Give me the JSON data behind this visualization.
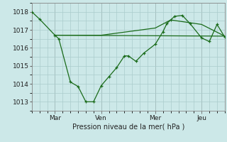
{
  "xlabel": "Pression niveau de la mer( hPa )",
  "bg_color": "#cce8e8",
  "grid_color": "#aacccc",
  "line_color": "#1a6b1a",
  "ylim": [
    1012.5,
    1018.5
  ],
  "yticks": [
    1013,
    1014,
    1015,
    1016,
    1017,
    1018
  ],
  "xtick_labels": [
    "Mar",
    "Ven",
    "Mer",
    "Jeu"
  ],
  "xtick_positions": [
    12,
    36,
    64,
    88
  ],
  "xlim": [
    0,
    100
  ],
  "series1_x": [
    0,
    4,
    12,
    14,
    20,
    24,
    28,
    32,
    36,
    40,
    44,
    48,
    50,
    54,
    58,
    64,
    68,
    70,
    72,
    74,
    78,
    82,
    88,
    92,
    96,
    100
  ],
  "series1_y": [
    1018.0,
    1017.6,
    1016.7,
    1016.5,
    1014.1,
    1013.85,
    1013.0,
    1013.0,
    1013.9,
    1014.4,
    1014.9,
    1015.55,
    1015.55,
    1015.25,
    1015.7,
    1016.2,
    1016.9,
    1017.35,
    1017.55,
    1017.75,
    1017.8,
    1017.35,
    1016.55,
    1016.35,
    1017.3,
    1016.6
  ],
  "series2_x": [
    12,
    100
  ],
  "series2_y": [
    1016.7,
    1016.65
  ],
  "series3_x": [
    12,
    36,
    64,
    72,
    88,
    100
  ],
  "series3_y": [
    1016.7,
    1016.7,
    1017.1,
    1017.55,
    1017.3,
    1016.65
  ],
  "vline_positions": [
    12,
    36,
    64,
    88
  ]
}
